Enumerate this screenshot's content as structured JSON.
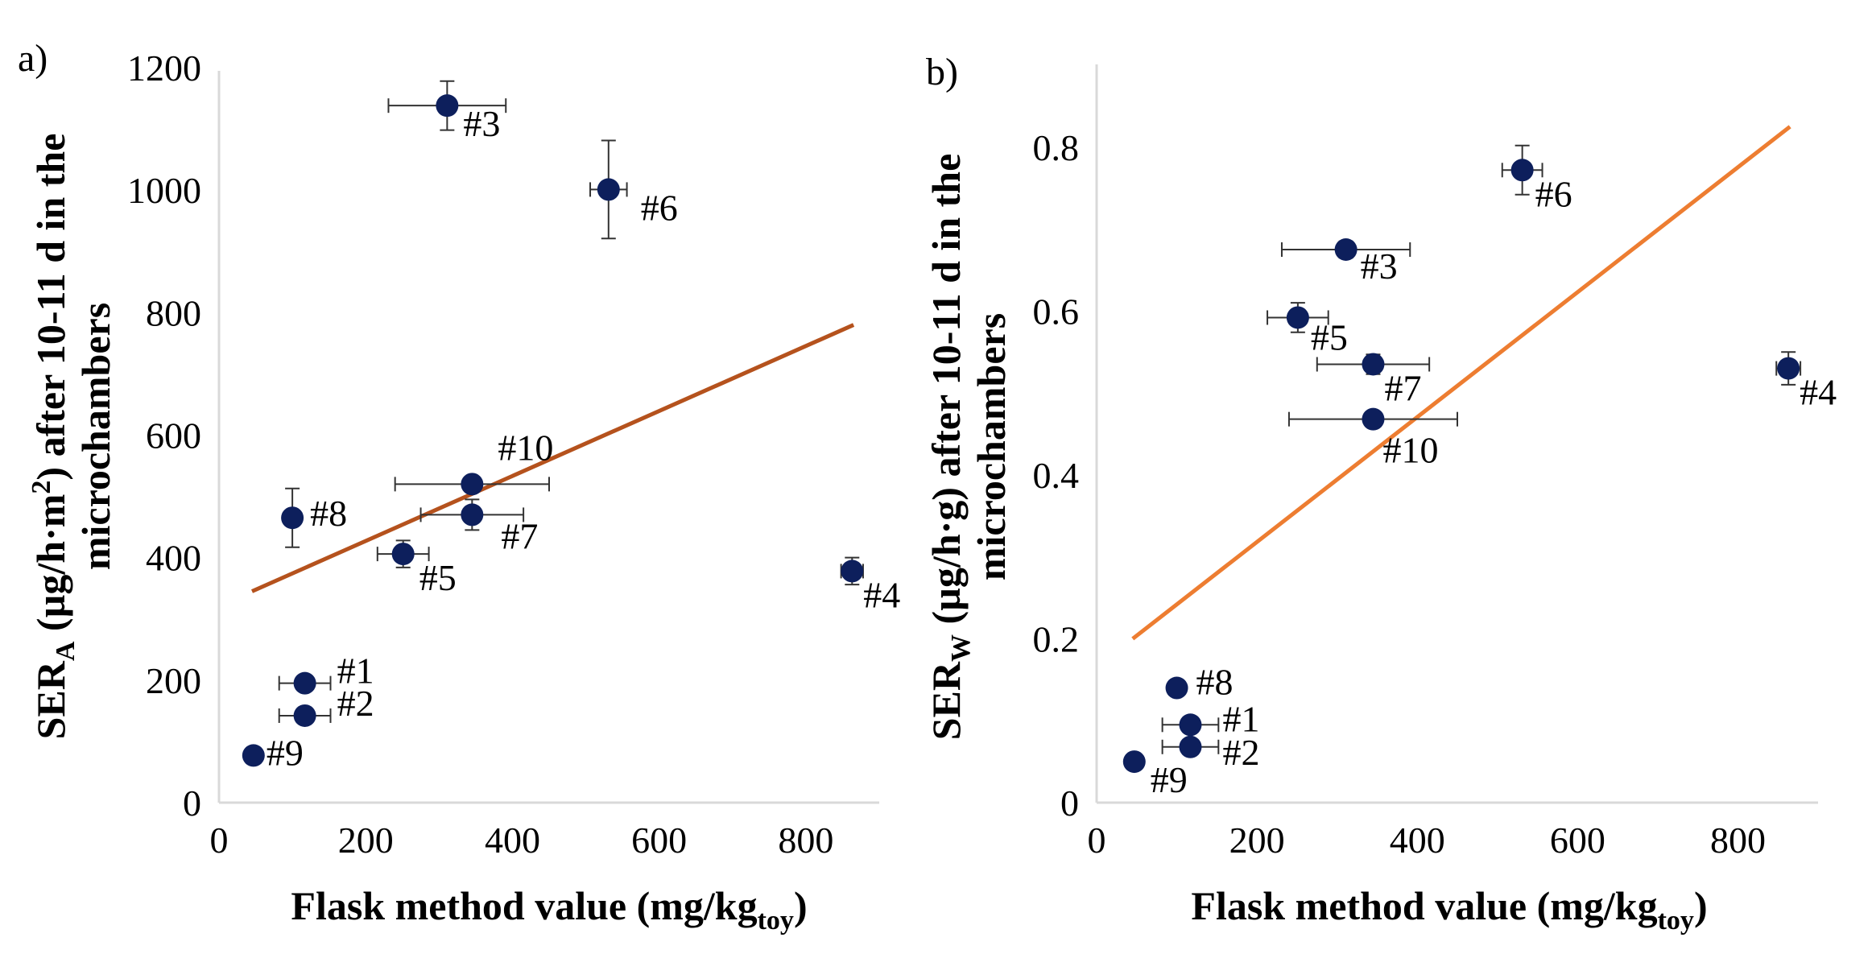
{
  "chart_data": [
    {
      "type": "scatter",
      "panel_label": "a)",
      "xlabel": "Flask method value (mg/kg",
      "xlabel_sub": "toy",
      "xlabel_end": ")",
      "ylabel_main": "SER",
      "ylabel_sub": "A",
      "ylabel_unit_a": " (µg/h·m",
      "ylabel_unit_sup": "2",
      "ylabel_unit_b": ") after 10-11 d in the",
      "ylabel_line2": "microchambers",
      "xlim": [
        0,
        900
      ],
      "ylim": [
        0,
        1200
      ],
      "xticks": [
        0,
        200,
        400,
        600,
        800
      ],
      "yticks": [
        0,
        200,
        400,
        600,
        800,
        1000,
        1200
      ],
      "trendline": {
        "x": [
          45,
          865
        ],
        "y": [
          345,
          780
        ],
        "color": "#b5521d"
      },
      "point_color": "#0d1f5c",
      "points": [
        {
          "label": "#1",
          "x": 117,
          "y": 195,
          "xerr": 35,
          "yerr": 0
        },
        {
          "label": "#2",
          "x": 117,
          "y": 142,
          "xerr": 35,
          "yerr": 0
        },
        {
          "label": "#3",
          "x": 311,
          "y": 1138,
          "xerr": 80,
          "yerr": 40
        },
        {
          "label": "#4",
          "x": 863,
          "y": 378,
          "xerr": 15,
          "yerr": 22
        },
        {
          "label": "#5",
          "x": 251,
          "y": 406,
          "xerr": 35,
          "yerr": 22
        },
        {
          "label": "#6",
          "x": 531,
          "y": 1001,
          "xerr": 25,
          "yerr": 80
        },
        {
          "label": "#7",
          "x": 345,
          "y": 470,
          "xerr": 70,
          "yerr": 25
        },
        {
          "label": "#8",
          "x": 100,
          "y": 465,
          "xerr": 0,
          "yerr": 48
        },
        {
          "label": "#9",
          "x": 47,
          "y": 77,
          "xerr": 0,
          "yerr": 0
        },
        {
          "label": "#10",
          "x": 345,
          "y": 520,
          "xerr": 105,
          "yerr": 0
        }
      ]
    },
    {
      "type": "scatter",
      "panel_label": "b)",
      "xlabel": "Flask method value (mg/kg",
      "xlabel_sub": "toy",
      "xlabel_end": ")",
      "ylabel_main": "SER",
      "ylabel_sub": "W",
      "ylabel_unit_a": " (µg/h·g) after 10-11 d in the",
      "ylabel_line2": "microchambers",
      "xlim": [
        0,
        900
      ],
      "ylim": [
        0,
        0.9
      ],
      "xticks": [
        0,
        200,
        400,
        600,
        800
      ],
      "yticks": [
        0,
        0.2,
        0.4,
        0.6,
        0.8
      ],
      "trendline": {
        "x": [
          45,
          865
        ],
        "y": [
          0.2,
          0.825
        ],
        "color": "#ed7d31"
      },
      "point_color": "#0d1f5c",
      "points": [
        {
          "label": "#1",
          "x": 117,
          "y": 0.095,
          "xerr": 35,
          "yerr": 0
        },
        {
          "label": "#2",
          "x": 117,
          "y": 0.068,
          "xerr": 35,
          "yerr": 0
        },
        {
          "label": "#3",
          "x": 311,
          "y": 0.675,
          "xerr": 80,
          "yerr": 0.01
        },
        {
          "label": "#4",
          "x": 863,
          "y": 0.53,
          "xerr": 15,
          "yerr": 0.02
        },
        {
          "label": "#5",
          "x": 251,
          "y": 0.592,
          "xerr": 38,
          "yerr": 0.018
        },
        {
          "label": "#6",
          "x": 531,
          "y": 0.772,
          "xerr": 25,
          "yerr": 0.03
        },
        {
          "label": "#7",
          "x": 345,
          "y": 0.535,
          "xerr": 70,
          "yerr": 0.012
        },
        {
          "label": "#8",
          "x": 100,
          "y": 0.14,
          "xerr": 0,
          "yerr": 0
        },
        {
          "label": "#9",
          "x": 47,
          "y": 0.05,
          "xerr": 0,
          "yerr": 0
        },
        {
          "label": "#10",
          "x": 345,
          "y": 0.468,
          "xerr": 105,
          "yerr": 0
        }
      ]
    }
  ]
}
